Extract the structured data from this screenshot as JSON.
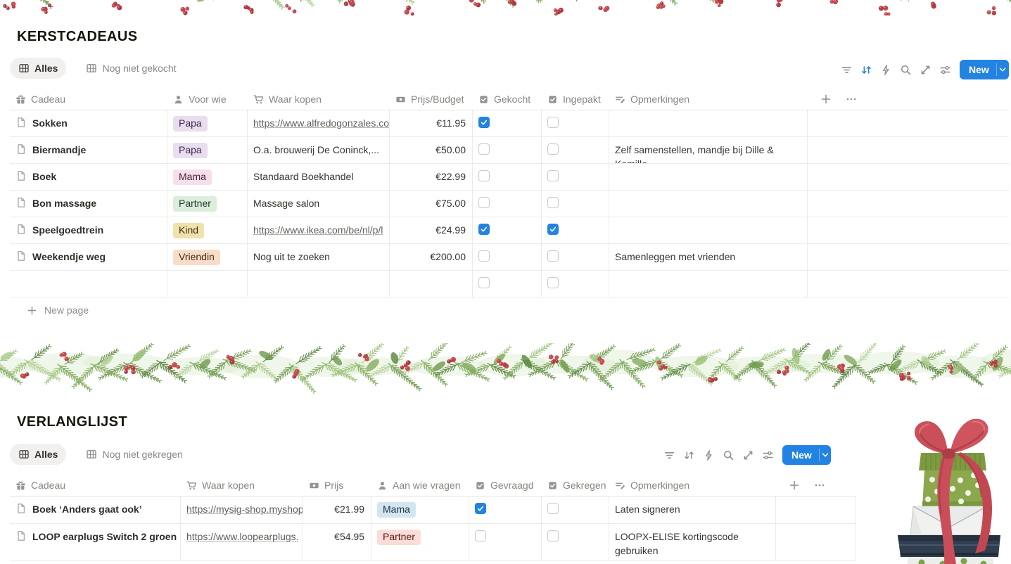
{
  "colors": {
    "accent": "#2383e2",
    "checkbox_checked": "#2383e2",
    "tag_colors": {
      "purple": {
        "bg": "#e8deee",
        "text": "#412454"
      },
      "pink": {
        "bg": "#f4dfea",
        "text": "#4c2337"
      },
      "green": {
        "bg": "#dceddb",
        "text": "#1c3829"
      },
      "yellow": {
        "bg": "#f0e2ab",
        "text": "#402c1b"
      },
      "orange": {
        "bg": "#f7ddc8",
        "text": "#49290e"
      },
      "blue": {
        "bg": "#d3e5ef",
        "text": "#183347"
      },
      "red": {
        "bg": "#fcdcd7",
        "text": "#5d1715"
      }
    }
  },
  "table1": {
    "title": "KERSTCADEAUS",
    "views": [
      {
        "label": "Alles",
        "active": true
      },
      {
        "label": "Nog niet gekocht",
        "active": false
      }
    ],
    "toolbar_icons": [
      "filter-icon",
      "sort-icon",
      "bolt-icon",
      "search-icon",
      "expand-icon",
      "sliders-icon"
    ],
    "active_toolbar_icon": "sort-icon",
    "new_label": "New",
    "columns": [
      {
        "label": "Cadeau",
        "icon": "gift-icon"
      },
      {
        "label": "Voor wie",
        "icon": "person-icon"
      },
      {
        "label": "Waar kopen",
        "icon": "cart-icon"
      },
      {
        "label": "Prijs/Budget",
        "icon": "banknote-icon"
      },
      {
        "label": "Gekocht",
        "icon": "checkbox-icon"
      },
      {
        "label": "Ingepakt",
        "icon": "checkbox-icon"
      },
      {
        "label": "Opmerkingen",
        "icon": "notes-icon"
      }
    ],
    "header_actions": [
      "plus-icon",
      "dots-icon"
    ],
    "rows": [
      {
        "cadeau": "Sokken",
        "voor_wie": {
          "label": "Papa",
          "color": "purple"
        },
        "waar_kopen": {
          "text": "https://www.alfredogonzales.co",
          "link": true
        },
        "prijs": "€11.95",
        "gekocht": true,
        "ingepakt": false,
        "opmerkingen": ""
      },
      {
        "cadeau": "Biermandje",
        "voor_wie": {
          "label": "Papa",
          "color": "purple"
        },
        "waar_kopen": {
          "text": "O.a. brouwerij De Coninck,...",
          "link": false
        },
        "prijs": "€50.00",
        "gekocht": false,
        "ingepakt": false,
        "opmerkingen": "Zelf samenstellen, mandje bij Dille & Kamille"
      },
      {
        "cadeau": "Boek",
        "voor_wie": {
          "label": "Mama",
          "color": "pink"
        },
        "waar_kopen": {
          "text": "Standaard Boekhandel",
          "link": false
        },
        "prijs": "€22.99",
        "gekocht": false,
        "ingepakt": false,
        "opmerkingen": ""
      },
      {
        "cadeau": "Bon massage",
        "voor_wie": {
          "label": "Partner",
          "color": "green"
        },
        "waar_kopen": {
          "text": "Massage salon",
          "link": false
        },
        "prijs": "€75.00",
        "gekocht": false,
        "ingepakt": false,
        "opmerkingen": ""
      },
      {
        "cadeau": "Speelgoedtrein",
        "voor_wie": {
          "label": "Kind",
          "color": "yellow"
        },
        "waar_kopen": {
          "text": "https://www.ikea.com/be/nl/p/l",
          "link": true
        },
        "prijs": "€24.99",
        "gekocht": true,
        "ingepakt": true,
        "opmerkingen": ""
      },
      {
        "cadeau": "Weekendje weg",
        "voor_wie": {
          "label": "Vriendin",
          "color": "orange"
        },
        "waar_kopen": {
          "text": "Nog uit te zoeken",
          "link": false
        },
        "prijs": "€200.00",
        "gekocht": false,
        "ingepakt": false,
        "opmerkingen": "Samenleggen met vrienden"
      },
      {
        "empty": true,
        "gekocht": false,
        "ingepakt": false
      }
    ],
    "new_page_label": "New page"
  },
  "table2": {
    "title": "VERLANGLIJST",
    "views": [
      {
        "label": "Alles",
        "active": true
      },
      {
        "label": "Nog niet gekregen",
        "active": false
      }
    ],
    "toolbar_icons": [
      "filter-icon",
      "sort-icon",
      "bolt-icon",
      "search-icon",
      "expand-icon",
      "sliders-icon"
    ],
    "active_toolbar_icon": "",
    "new_label": "New",
    "columns": [
      {
        "label": "Cadeau",
        "icon": "gift-icon"
      },
      {
        "label": "Waar kopen",
        "icon": "cart-icon"
      },
      {
        "label": "Prijs",
        "icon": "banknote-icon"
      },
      {
        "label": "Aan wie vragen",
        "icon": "person-icon"
      },
      {
        "label": "Gevraagd",
        "icon": "checkbox-icon"
      },
      {
        "label": "Gekregen",
        "icon": "checkbox-icon"
      },
      {
        "label": "Opmerkingen",
        "icon": "notes-icon"
      }
    ],
    "header_actions": [
      "plus-icon",
      "dots-icon"
    ],
    "rows": [
      {
        "cadeau": "Boek ‘Anders gaat ook’",
        "waar_kopen": {
          "text": "https://mysig-shop.myshop",
          "link": true
        },
        "prijs": "€21.99",
        "aan_wie_vragen": {
          "label": "Mama",
          "color": "blue"
        },
        "gevraagd": true,
        "gekregen": false,
        "opmerkingen": "Laten signeren"
      },
      {
        "cadeau": "LOOP earplugs Switch 2 groen",
        "waar_kopen": {
          "text": "https://www.loopearplugs.",
          "link": true
        },
        "prijs": "€54.95",
        "aan_wie_vragen": {
          "label": "Partner",
          "color": "red"
        },
        "gevraagd": false,
        "gekregen": false,
        "opmerkingen": "LOOPX-ELISE kortingscode gebruiken"
      }
    ]
  }
}
